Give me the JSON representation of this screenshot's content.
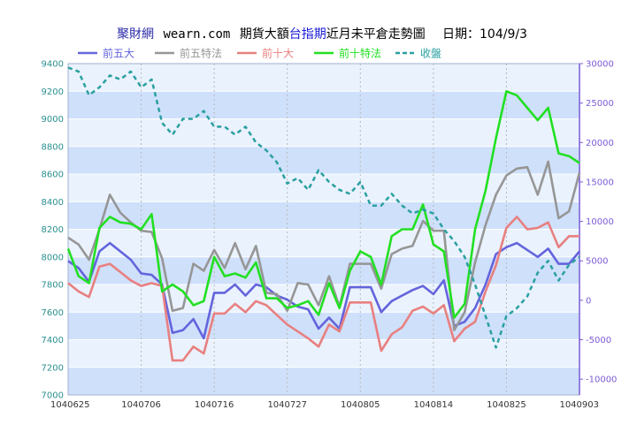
{
  "title": {
    "site": "聚財網",
    "domain": "wearn.com",
    "prefix": "期貨大額",
    "highlight": "台指期",
    "suffix": "近月未平倉走勢圖",
    "date_label": "日期：104/9/3"
  },
  "colors": {
    "title_site": "#2a2aa8",
    "title_text": "#000000",
    "title_highlight": "#1818d8",
    "band": "#cfe0fb",
    "band_light": "#eaf2fd",
    "plot_border": "#a0b0d0",
    "left_axis": "#2b8f8f",
    "right_axis": "#7b5bd6",
    "grid": "#b9b9b9"
  },
  "chart_data": {
    "type": "line",
    "x_tick_labels": [
      "1040625",
      "1040706",
      "1040716",
      "1040727",
      "1040805",
      "1040814",
      "1040825",
      "1040903"
    ],
    "x_tick_index": [
      0,
      7,
      14,
      21,
      28,
      35,
      42,
      49
    ],
    "num_points": 50,
    "left_axis": {
      "ylim": [
        7000,
        9400
      ],
      "ticks": [
        7000,
        7200,
        7400,
        7600,
        7800,
        8000,
        8200,
        8400,
        8600,
        8800,
        9000,
        9200,
        9400
      ]
    },
    "right_axis": {
      "ylim": [
        -12000,
        30000
      ],
      "ticks": [
        -10000,
        -5000,
        0,
        5000,
        10000,
        15000,
        20000,
        25000,
        30000
      ]
    },
    "series": [
      {
        "name": "前五大",
        "color": "#6464dc",
        "axis": "left",
        "dash": false,
        "values": [
          7970,
          7920,
          7820,
          8040,
          8100,
          8040,
          7980,
          7880,
          7870,
          7800,
          7450,
          7470,
          7550,
          7410,
          7740,
          7740,
          7800,
          7720,
          7800,
          7780,
          7720,
          7690,
          7640,
          7620,
          7480,
          7560,
          7480,
          7780,
          7780,
          7780,
          7600,
          7680,
          7720,
          7760,
          7790,
          7730,
          7830,
          7500,
          7530,
          7630,
          7800,
          8020,
          8070,
          8100,
          8050,
          8000,
          8060,
          7950,
          7950,
          8040
        ]
      },
      {
        "name": "前五特法",
        "color": "#969696",
        "axis": "left",
        "dash": false,
        "values": [
          8140,
          8090,
          7980,
          8200,
          8450,
          8320,
          8250,
          8190,
          8180,
          7990,
          7610,
          7630,
          7950,
          7900,
          8050,
          7920,
          8100,
          7910,
          8080,
          7740,
          7730,
          7610,
          7810,
          7800,
          7650,
          7860,
          7640,
          7950,
          7950,
          7950,
          7770,
          8020,
          8060,
          8080,
          8260,
          8190,
          8190,
          7470,
          7600,
          7960,
          8230,
          8450,
          8590,
          8640,
          8650,
          8450,
          8690,
          8280,
          8330,
          8610
        ]
      },
      {
        "name": "前十大",
        "color": "#e88080",
        "axis": "left",
        "dash": false,
        "values": [
          7810,
          7750,
          7710,
          7930,
          7950,
          7890,
          7830,
          7790,
          7810,
          7790,
          7250,
          7250,
          7350,
          7300,
          7590,
          7590,
          7660,
          7600,
          7680,
          7650,
          7580,
          7510,
          7460,
          7410,
          7350,
          7510,
          7460,
          7670,
          7670,
          7670,
          7320,
          7440,
          7490,
          7610,
          7640,
          7590,
          7650,
          7390,
          7480,
          7530,
          7750,
          7940,
          8210,
          8290,
          8200,
          8210,
          8250,
          8070,
          8150,
          8150
        ]
      },
      {
        "name": "前十特法",
        "color": "#22e022",
        "axis": "left",
        "dash": false,
        "values": [
          8060,
          7860,
          7810,
          8210,
          8290,
          8250,
          8240,
          8200,
          8310,
          7750,
          7800,
          7750,
          7650,
          7680,
          8000,
          7860,
          7880,
          7850,
          7960,
          7700,
          7700,
          7630,
          7650,
          7680,
          7580,
          7810,
          7630,
          7900,
          8040,
          8000,
          7800,
          8150,
          8200,
          8200,
          8380,
          8090,
          8040,
          7560,
          7660,
          8200,
          8480,
          8860,
          9200,
          9170,
          9080,
          8990,
          9080,
          8750,
          8730,
          8680
        ]
      },
      {
        "name": "收盤",
        "color": "#2aa0a0",
        "axis": "right",
        "dash": true,
        "values": [
          29500,
          29000,
          26000,
          27000,
          28500,
          28000,
          29000,
          27000,
          28000,
          22500,
          21000,
          23000,
          23000,
          24000,
          22000,
          22000,
          21000,
          22000,
          20000,
          19000,
          17500,
          14800,
          15500,
          14000,
          16500,
          15000,
          14000,
          13500,
          15000,
          12000,
          12000,
          13500,
          12000,
          11000,
          11500,
          11000,
          9000,
          7500,
          5500,
          2000,
          -2000,
          -6000,
          -2000,
          -1000,
          500,
          3500,
          5000,
          2500,
          4500,
          5500
        ]
      }
    ],
    "legend": {
      "placement": "top-left",
      "entries": [
        "前五大",
        "前五特法",
        "前十大",
        "前十特法",
        "收盤"
      ]
    },
    "grid": true
  }
}
